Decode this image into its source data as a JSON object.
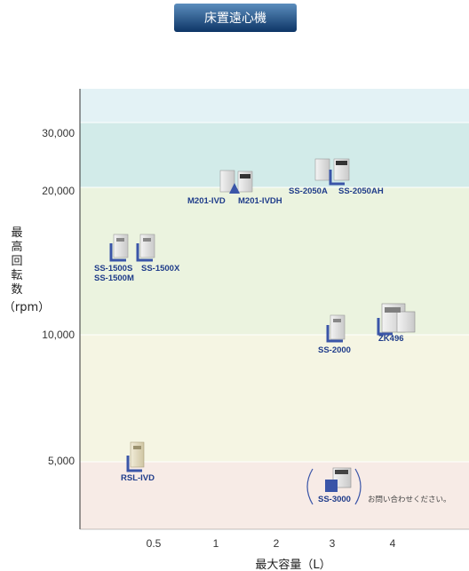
{
  "header": {
    "title": "床置遠心機"
  },
  "chart_data": {
    "type": "scatter",
    "title": "床置遠心機",
    "xlabel": "最大容量（L）",
    "ylabel_lines": [
      "最",
      "高",
      "回",
      "転",
      "数"
    ],
    "ylabel_unit": "（rpm）",
    "x_ticks": [
      "0.5",
      "1",
      "2",
      "3",
      "4"
    ],
    "y_ticks": [
      "30,000",
      "20,000",
      "10,000",
      "5,000"
    ],
    "bands": [
      {
        "from": 30000,
        "to": 40000,
        "color": "#e3f2f5"
      },
      {
        "from": 20000,
        "to": 30000,
        "color": "#d2ebe9"
      },
      {
        "from": 10000,
        "to": 20000,
        "color": "#ebf3df"
      },
      {
        "from": 5000,
        "to": 10000,
        "color": "#f5f5e3"
      },
      {
        "from": 3000,
        "to": 5000,
        "color": "#f7ebe6"
      }
    ],
    "points": [
      {
        "label": "SS-1500S",
        "label2": "SS-1500M",
        "x": "0.5",
        "y": 14000
      },
      {
        "label": "SS-1500X",
        "x": "0.5",
        "y": 14000
      },
      {
        "label": "M201-IVD",
        "x": "1",
        "y": 20000
      },
      {
        "label": "M201-IVDH",
        "x": "1",
        "y": 20000
      },
      {
        "label": "SS-2050A",
        "x": "3",
        "y": 20500
      },
      {
        "label": "SS-2050AH",
        "x": "3",
        "y": 20500
      },
      {
        "label": "SS-2000",
        "x": "3",
        "y": 9500
      },
      {
        "label": "ZK496",
        "x": "4",
        "y": 10000
      },
      {
        "label": "RSL-IVD",
        "x": "0.5",
        "y": 5000
      },
      {
        "label": "SS-3000",
        "x": "3",
        "y": 4000
      }
    ],
    "note": "お問い合わせください。",
    "colors": {
      "marker": "#3a55a8",
      "label": "#1f3c8a",
      "badge_top": "#4a7fb0",
      "badge_bottom": "#0d3566"
    }
  }
}
